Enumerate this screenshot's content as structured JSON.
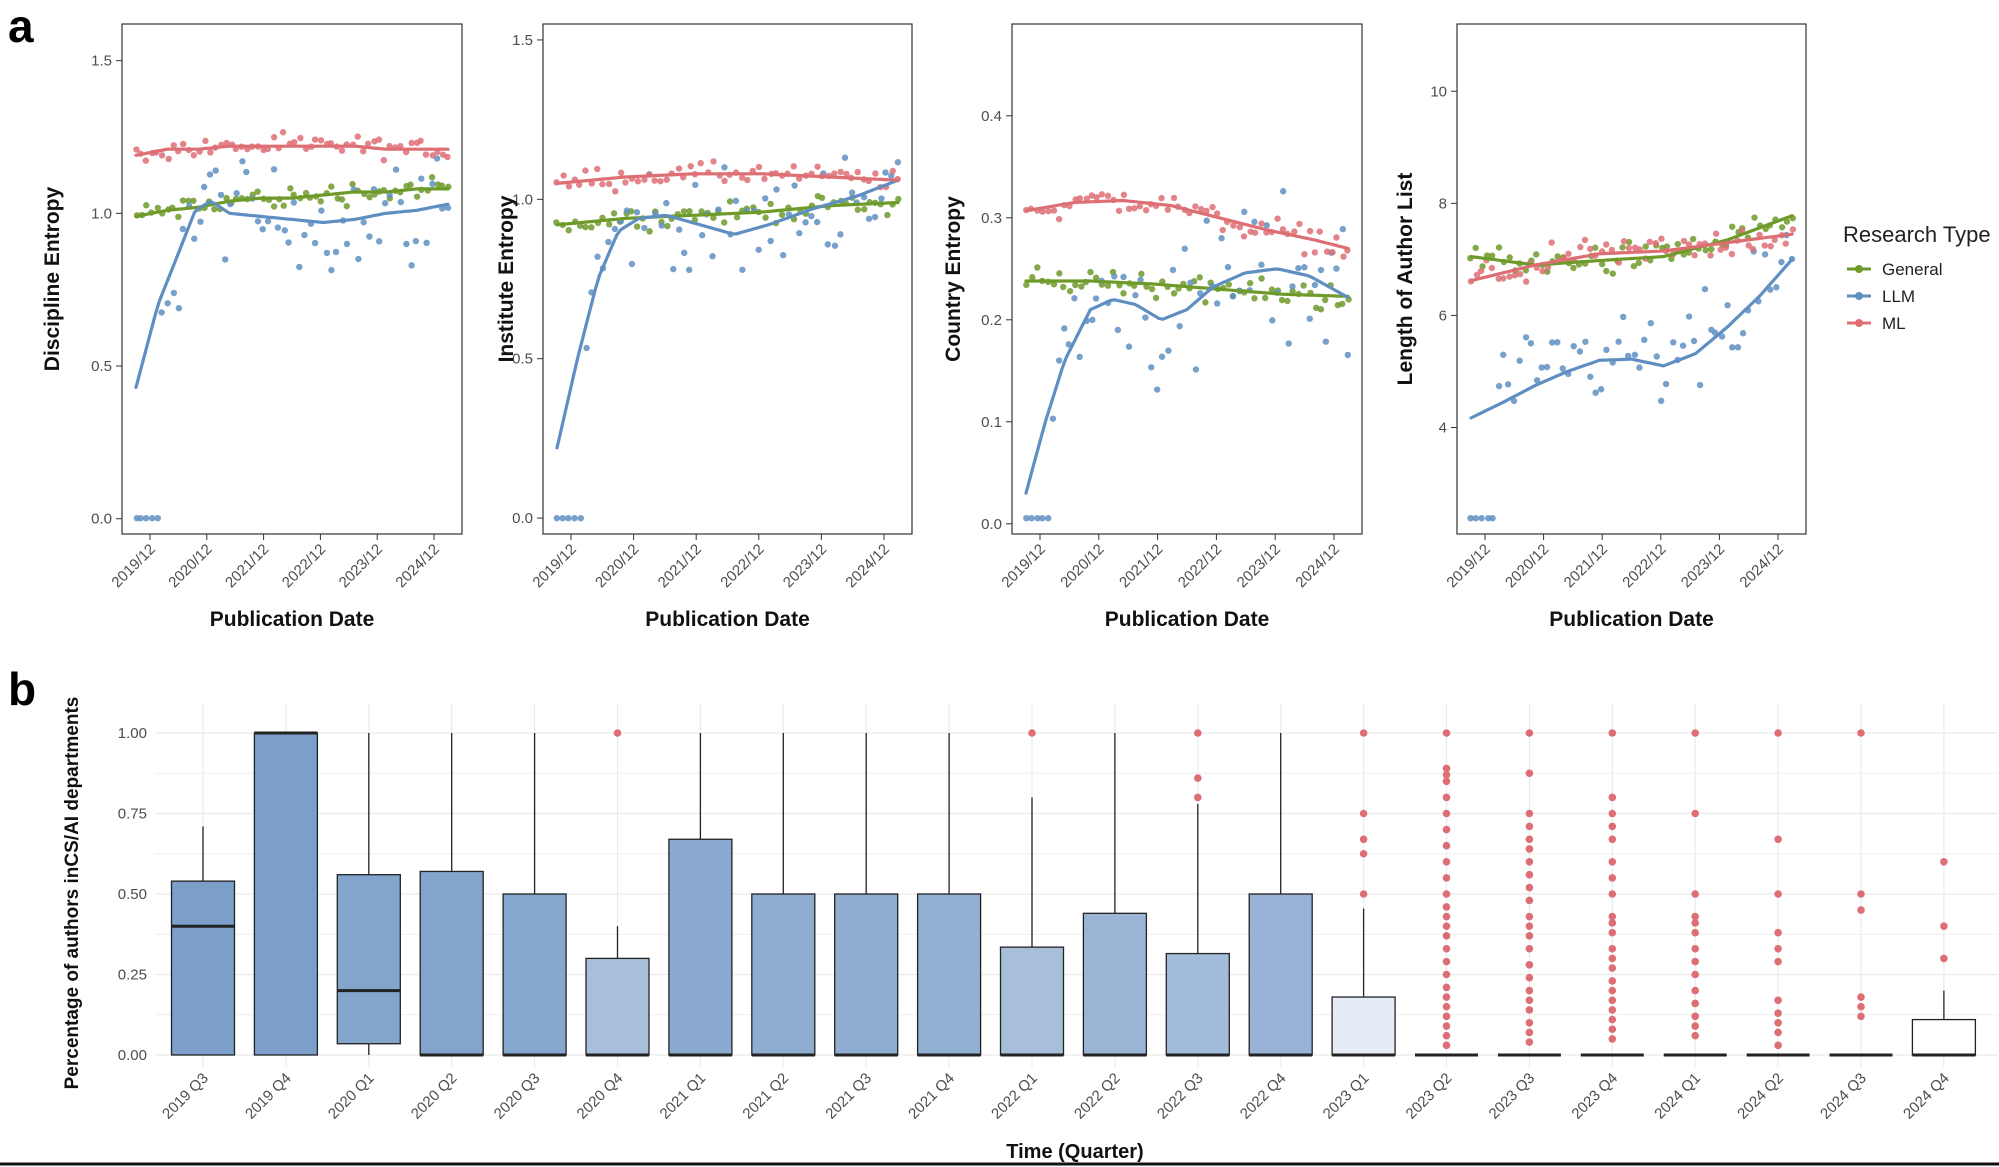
{
  "figure": {
    "panel_a_label": "a",
    "panel_b_label": "b",
    "legend": {
      "title": "Research Type",
      "items": [
        {
          "name": "General",
          "color": "#6e9a2a"
        },
        {
          "name": "LLM",
          "color": "#5f8fc2"
        },
        {
          "name": "ML",
          "color": "#dd6f74"
        }
      ]
    }
  },
  "chart_data": [
    {
      "type": "scatter",
      "title": "",
      "xlabel": "Publication Date",
      "ylabel": "Discipline Entropy",
      "x_ticks": [
        "2019/12",
        "2020/12",
        "2021/12",
        "2022/12",
        "2023/12",
        "2024/12"
      ],
      "ylim": [
        -0.05,
        1.62
      ],
      "y_ticks": [
        "0.0",
        "0.5",
        "1.0",
        "1.5"
      ],
      "grid": false,
      "series": [
        {
          "name": "General",
          "trend": [
            [
              0,
              0.99
            ],
            [
              0.1,
              1.01
            ],
            [
              0.2,
              1.02
            ],
            [
              0.3,
              1.04
            ],
            [
              0.4,
              1.05
            ],
            [
              0.5,
              1.05
            ],
            [
              0.6,
              1.06
            ],
            [
              0.7,
              1.07
            ],
            [
              0.8,
              1.07
            ],
            [
              0.9,
              1.08
            ],
            [
              1,
              1.08
            ]
          ]
        },
        {
          "name": "LLM",
          "trend": [
            [
              0,
              0.43
            ],
            [
              0.07,
              0.7
            ],
            [
              0.14,
              0.88
            ],
            [
              0.19,
              1.01
            ],
            [
              0.24,
              1.04
            ],
            [
              0.3,
              1.0
            ],
            [
              0.4,
              0.99
            ],
            [
              0.5,
              0.98
            ],
            [
              0.6,
              0.97
            ],
            [
              0.7,
              0.98
            ],
            [
              0.8,
              1.0
            ],
            [
              0.9,
              1.01
            ],
            [
              1,
              1.03
            ]
          ]
        },
        {
          "name": "ML",
          "trend": [
            [
              0,
              1.19
            ],
            [
              0.1,
              1.21
            ],
            [
              0.2,
              1.21
            ],
            [
              0.3,
              1.22
            ],
            [
              0.4,
              1.22
            ],
            [
              0.5,
              1.22
            ],
            [
              0.6,
              1.22
            ],
            [
              0.7,
              1.22
            ],
            [
              0.8,
              1.21
            ],
            [
              0.9,
              1.21
            ],
            [
              1,
              1.21
            ]
          ]
        }
      ]
    },
    {
      "type": "scatter",
      "title": "",
      "xlabel": "Publication Date",
      "ylabel": "Institute Entropy",
      "x_ticks": [
        "2019/12",
        "2020/12",
        "2021/12",
        "2022/12",
        "2023/12",
        "2024/12"
      ],
      "ylim": [
        -0.05,
        1.55
      ],
      "y_ticks": [
        "0.0",
        "0.5",
        "1.0",
        "1.5"
      ],
      "grid": false,
      "series": [
        {
          "name": "General",
          "trend": [
            [
              0,
              0.92
            ],
            [
              0.2,
              0.94
            ],
            [
              0.4,
              0.95
            ],
            [
              0.6,
              0.96
            ],
            [
              0.8,
              0.98
            ],
            [
              1,
              0.99
            ]
          ]
        },
        {
          "name": "LLM",
          "trend": [
            [
              0,
              0.22
            ],
            [
              0.06,
              0.5
            ],
            [
              0.12,
              0.75
            ],
            [
              0.18,
              0.9
            ],
            [
              0.24,
              0.94
            ],
            [
              0.32,
              0.95
            ],
            [
              0.42,
              0.92
            ],
            [
              0.52,
              0.89
            ],
            [
              0.62,
              0.92
            ],
            [
              0.75,
              0.97
            ],
            [
              0.88,
              1.01
            ],
            [
              1,
              1.06
            ]
          ]
        },
        {
          "name": "ML",
          "trend": [
            [
              0,
              1.05
            ],
            [
              0.2,
              1.07
            ],
            [
              0.4,
              1.08
            ],
            [
              0.6,
              1.08
            ],
            [
              0.8,
              1.07
            ],
            [
              1,
              1.06
            ]
          ]
        }
      ]
    },
    {
      "type": "scatter",
      "title": "",
      "xlabel": "Publication Date",
      "ylabel": "Country Entropy",
      "x_ticks": [
        "2019/12",
        "2020/12",
        "2021/12",
        "2022/12",
        "2023/12",
        "2024/12"
      ],
      "ylim": [
        -0.01,
        0.49
      ],
      "y_ticks": [
        "0.0",
        "0.1",
        "0.2",
        "0.3",
        "0.4"
      ],
      "grid": false,
      "series": [
        {
          "name": "General",
          "trend": [
            [
              0,
              0.238
            ],
            [
              0.2,
              0.238
            ],
            [
              0.4,
              0.235
            ],
            [
              0.6,
              0.23
            ],
            [
              0.8,
              0.225
            ],
            [
              1,
              0.223
            ]
          ]
        },
        {
          "name": "LLM",
          "trend": [
            [
              0,
              0.03
            ],
            [
              0.06,
              0.1
            ],
            [
              0.12,
              0.16
            ],
            [
              0.2,
              0.21
            ],
            [
              0.27,
              0.22
            ],
            [
              0.34,
              0.215
            ],
            [
              0.42,
              0.2
            ],
            [
              0.5,
              0.21
            ],
            [
              0.58,
              0.232
            ],
            [
              0.68,
              0.246
            ],
            [
              0.78,
              0.25
            ],
            [
              0.88,
              0.243
            ],
            [
              1,
              0.222
            ]
          ]
        },
        {
          "name": "ML",
          "trend": [
            [
              0,
              0.307
            ],
            [
              0.15,
              0.315
            ],
            [
              0.3,
              0.317
            ],
            [
              0.45,
              0.312
            ],
            [
              0.6,
              0.3
            ],
            [
              0.75,
              0.288
            ],
            [
              0.9,
              0.278
            ],
            [
              1,
              0.27
            ]
          ]
        }
      ]
    },
    {
      "type": "scatter",
      "title": "",
      "xlabel": "Publication Date",
      "ylabel": "Length of Author List",
      "x_ticks": [
        "2019/12",
        "2020/12",
        "2021/12",
        "2022/12",
        "2023/12",
        "2024/12"
      ],
      "ylim": [
        2.1,
        11.2
      ],
      "y_ticks": [
        "4",
        "6",
        "8",
        "10"
      ],
      "grid": false,
      "series": [
        {
          "name": "General",
          "trend": [
            [
              0,
              7.05
            ],
            [
              0.2,
              6.9
            ],
            [
              0.4,
              6.98
            ],
            [
              0.6,
              7.05
            ],
            [
              0.8,
              7.35
            ],
            [
              1,
              7.78
            ]
          ]
        },
        {
          "name": "LLM",
          "trend": [
            [
              0,
              4.17
            ],
            [
              0.1,
              4.45
            ],
            [
              0.2,
              4.75
            ],
            [
              0.3,
              5.0
            ],
            [
              0.4,
              5.2
            ],
            [
              0.5,
              5.22
            ],
            [
              0.6,
              5.1
            ],
            [
              0.7,
              5.32
            ],
            [
              0.8,
              5.8
            ],
            [
              0.9,
              6.35
            ],
            [
              1,
              7.0
            ]
          ]
        },
        {
          "name": "ML",
          "trend": [
            [
              0,
              6.62
            ],
            [
              0.2,
              6.9
            ],
            [
              0.4,
              7.1
            ],
            [
              0.6,
              7.15
            ],
            [
              0.8,
              7.3
            ],
            [
              1,
              7.45
            ]
          ]
        }
      ]
    },
    {
      "type": "box",
      "title": "",
      "xlabel": "Time (Quarter)",
      "ylabel": "Percentage of authors inCS/AI departments",
      "ylim": [
        0,
        1
      ],
      "y_ticks": [
        "0.00",
        "0.25",
        "0.50",
        "0.75",
        "1.00"
      ],
      "grid": true,
      "outlier_color": "#dd6f74",
      "categories": [
        "2019 Q3",
        "2019 Q4",
        "2020 Q1",
        "2020 Q2",
        "2020 Q3",
        "2020 Q4",
        "2021 Q1",
        "2021 Q2",
        "2021 Q3",
        "2021 Q4",
        "2022 Q1",
        "2022 Q2",
        "2022 Q3",
        "2022 Q4",
        "2023 Q1",
        "2023 Q2",
        "2023 Q3",
        "2023 Q4",
        "2024 Q1",
        "2024 Q2",
        "2024 Q3",
        "2024 Q4"
      ],
      "boxes": [
        {
          "q1": 0,
          "median": 0.4,
          "q3": 0.54,
          "whisker_low": 0,
          "whisker_high": 0.71,
          "fill": "#7b9fc9",
          "outliers": []
        },
        {
          "q1": 0,
          "median": 1.0,
          "q3": 1.0,
          "whisker_low": 0,
          "whisker_high": 1.0,
          "fill": "#7b9fc9",
          "outliers": []
        },
        {
          "q1": 0.035,
          "median": 0.2,
          "q3": 0.56,
          "whisker_low": 0,
          "whisker_high": 1.0,
          "fill": "#83a5cc",
          "outliers": []
        },
        {
          "q1": 0,
          "median": 0,
          "q3": 0.57,
          "whisker_low": 0,
          "whisker_high": 1.0,
          "fill": "#83a5cc",
          "outliers": []
        },
        {
          "q1": 0,
          "median": 0,
          "q3": 0.5,
          "whisker_low": 0,
          "whisker_high": 1.0,
          "fill": "#87a8ce",
          "outliers": []
        },
        {
          "q1": 0,
          "median": 0,
          "q3": 0.3,
          "whisker_low": 0,
          "whisker_high": 0.4,
          "fill": "#a8bfdc",
          "outliers": [
            1.0
          ]
        },
        {
          "q1": 0,
          "median": 0,
          "q3": 0.67,
          "whisker_low": 0,
          "whisker_high": 1.0,
          "fill": "#8aaacf",
          "outliers": []
        },
        {
          "q1": 0,
          "median": 0,
          "q3": 0.5,
          "whisker_low": 0,
          "whisker_high": 1.0,
          "fill": "#8eadd1",
          "outliers": []
        },
        {
          "q1": 0,
          "median": 0,
          "q3": 0.5,
          "whisker_low": 0,
          "whisker_high": 1.0,
          "fill": "#8eadd1",
          "outliers": []
        },
        {
          "q1": 0,
          "median": 0,
          "q3": 0.5,
          "whisker_low": 0,
          "whisker_high": 1.0,
          "fill": "#92b0d2",
          "outliers": []
        },
        {
          "q1": 0,
          "median": 0,
          "q3": 0.335,
          "whisker_low": 0,
          "whisker_high": 0.8,
          "fill": "#a8bfdc",
          "outliers": [
            1.0
          ]
        },
        {
          "q1": 0,
          "median": 0,
          "q3": 0.44,
          "whisker_low": 0,
          "whisker_high": 1.0,
          "fill": "#9ab5d6",
          "outliers": []
        },
        {
          "q1": 0,
          "median": 0,
          "q3": 0.315,
          "whisker_low": 0,
          "whisker_high": 0.78,
          "fill": "#a4bcdb",
          "outliers": [
            0.8,
            0.86,
            1.0
          ]
        },
        {
          "q1": 0,
          "median": 0,
          "q3": 0.5,
          "whisker_low": 0,
          "whisker_high": 1.0,
          "fill": "#98b3d5",
          "outliers": []
        },
        {
          "q1": 0,
          "median": 0,
          "q3": 0.18,
          "whisker_low": 0,
          "whisker_high": 0.455,
          "fill": "#e6ecf5",
          "outliers": [
            0.5,
            0.625,
            0.67,
            0.75,
            1.0
          ]
        },
        {
          "q1": 0,
          "median": 0,
          "q3": 0,
          "whisker_low": 0,
          "whisker_high": 0,
          "fill": "#f2f5fa",
          "outliers": [
            0.03,
            0.06,
            0.09,
            0.12,
            0.15,
            0.18,
            0.21,
            0.25,
            0.29,
            0.33,
            0.37,
            0.4,
            0.43,
            0.46,
            0.5,
            0.55,
            0.6,
            0.65,
            0.7,
            0.75,
            0.8,
            0.85,
            0.87,
            0.89,
            1.0
          ]
        },
        {
          "q1": 0,
          "median": 0,
          "q3": 0,
          "whisker_low": 0,
          "whisker_high": 0,
          "fill": "#f2f5fa",
          "outliers": [
            0.04,
            0.07,
            0.1,
            0.14,
            0.17,
            0.2,
            0.24,
            0.28,
            0.33,
            0.37,
            0.4,
            0.43,
            0.48,
            0.52,
            0.56,
            0.6,
            0.64,
            0.67,
            0.71,
            0.75,
            0.875,
            1.0
          ]
        },
        {
          "q1": 0,
          "median": 0,
          "q3": 0,
          "whisker_low": 0,
          "whisker_high": 0,
          "fill": "#f2f5fa",
          "outliers": [
            0.05,
            0.08,
            0.11,
            0.14,
            0.17,
            0.2,
            0.23,
            0.27,
            0.3,
            0.33,
            0.38,
            0.41,
            0.43,
            0.5,
            0.55,
            0.6,
            0.67,
            0.71,
            0.75,
            0.8,
            1.0
          ]
        },
        {
          "q1": 0,
          "median": 0,
          "q3": 0,
          "whisker_low": 0,
          "whisker_high": 0,
          "fill": "#f2f5fa",
          "outliers": [
            0.06,
            0.09,
            0.12,
            0.16,
            0.2,
            0.25,
            0.29,
            0.33,
            0.38,
            0.41,
            0.43,
            0.5,
            0.75,
            1.0
          ]
        },
        {
          "q1": 0,
          "median": 0,
          "q3": 0,
          "whisker_low": 0,
          "whisker_high": 0,
          "fill": "#f2f5fa",
          "outliers": [
            0.03,
            0.07,
            0.1,
            0.13,
            0.17,
            0.29,
            0.33,
            0.38,
            0.5,
            0.67,
            1.0
          ]
        },
        {
          "q1": 0,
          "median": 0,
          "q3": 0,
          "whisker_low": 0,
          "whisker_high": 0,
          "fill": "#f2f5fa",
          "outliers": [
            0.12,
            0.15,
            0.18,
            0.45,
            0.5,
            1.0
          ]
        },
        {
          "q1": 0,
          "median": 0,
          "q3": 0.11,
          "whisker_low": 0,
          "whisker_high": 0.2,
          "fill": "#ffffff",
          "outliers": [
            0.3,
            0.4,
            0.6
          ]
        }
      ]
    }
  ]
}
